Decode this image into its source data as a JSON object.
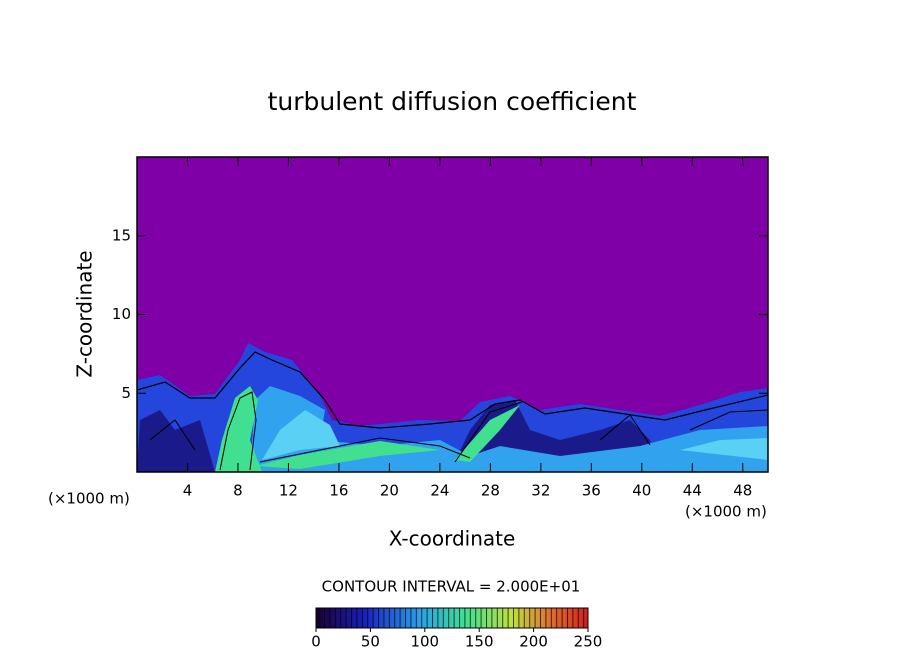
{
  "chart_data": {
    "type": "contour",
    "title": "turbulent diffusion coefficient",
    "x_label": "X-coordinate",
    "y_label": "Z-coordinate",
    "x_unit_labels": [
      "(×1000 m)",
      "(×1000 m)"
    ],
    "contour_interval_label": "CONTOUR INTERVAL = 2.000E+01",
    "xlim": [
      0,
      50
    ],
    "xticks": [
      4,
      8,
      12,
      16,
      20,
      24,
      28,
      32,
      36,
      40,
      44,
      48
    ],
    "ylim": [
      0,
      20
    ],
    "yticks": [
      5,
      10,
      15
    ],
    "colorbar": {
      "lim": [
        0,
        250
      ],
      "ticks": [
        0,
        50,
        100,
        150,
        200,
        250
      ]
    }
  }
}
